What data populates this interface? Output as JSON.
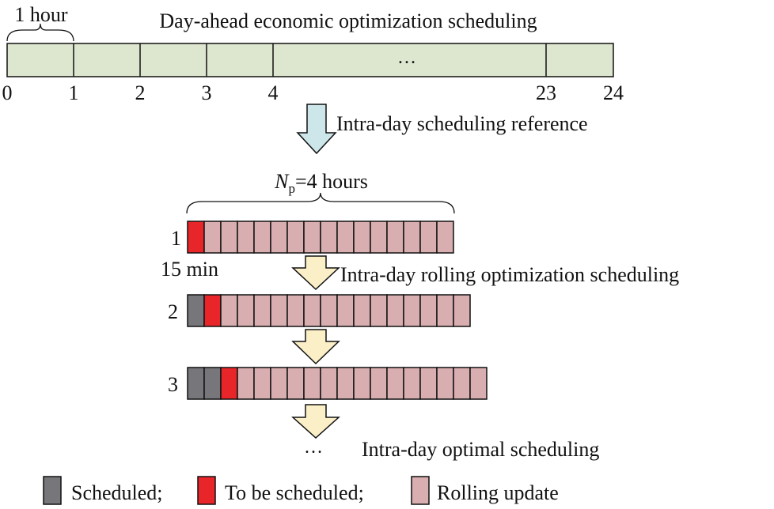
{
  "day_ahead": {
    "interval_label": "1 hour",
    "title": "Day-ahead economic optimization scheduling",
    "ellipsis": "…",
    "ticks": [
      "0",
      "1",
      "2",
      "3",
      "4",
      "23",
      "24"
    ]
  },
  "arrow_1": {
    "label": "Intra-day scheduling  reference"
  },
  "horizon": {
    "label_var": "N",
    "label_sub": "p",
    "label_rest": "=4 hours"
  },
  "rows": [
    {
      "label": "1",
      "scheduled": 0
    },
    {
      "label": "2",
      "scheduled": 1
    },
    {
      "label": "3",
      "scheduled": 2
    }
  ],
  "slots_per_window": 16,
  "slot_label": "15 min",
  "arrow_2": {
    "label": "Intra-day rolling optimization scheduling"
  },
  "arrow_4": {
    "label": "Intra-day optimal scheduling",
    "ellipsis": "…"
  },
  "legend": {
    "items": [
      {
        "label": "Scheduled;",
        "color": "#77777b"
      },
      {
        "label": "To be scheduled;",
        "color": "#e8262a"
      },
      {
        "label": "Rolling update",
        "color": "#d9aeb0"
      }
    ]
  },
  "colors": {
    "day_ahead_fill": "#dde7d0",
    "reference_arrow": "#cde6ea",
    "rolling_arrow": "#fbefc7",
    "scheduled": "#77777b",
    "to_be_scheduled": "#e8262a",
    "rolling_update": "#d9aeb0"
  }
}
